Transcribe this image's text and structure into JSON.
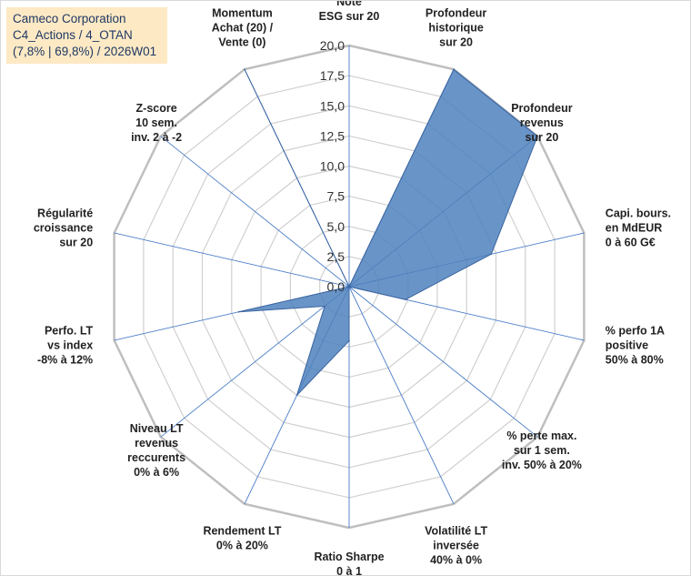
{
  "title": {
    "line1": "Cameco Corporation",
    "line2": "C4_Actions / 4_OTAN",
    "line3": "(7,8% | 69,8%) / 2026W01"
  },
  "chart_data": {
    "type": "radar",
    "title": "Cameco Corporation",
    "rmin": 0,
    "rmax": 20,
    "tick_step": 2.5,
    "ticks": [
      "0,0",
      "2,5",
      "5,0",
      "7,5",
      "10,0",
      "12,5",
      "15,0",
      "17,5",
      "20,0"
    ],
    "axes": [
      {
        "label": [
          "Note",
          "ESG sur 20"
        ]
      },
      {
        "label": [
          "Profondeur",
          "historique",
          "sur 20"
        ]
      },
      {
        "label": [
          "Profondeur",
          "revenus",
          "sur 20"
        ]
      },
      {
        "label": [
          "Capi. bours.",
          "en MdEUR",
          "0 à 60 G€"
        ]
      },
      {
        "label": [
          "% perfo 1A",
          "positive",
          "50% à 80%"
        ]
      },
      {
        "label": [
          "% perte max.",
          "sur 1 sem.",
          "inv. 50% à 20%"
        ]
      },
      {
        "label": [
          "Volatilité LT",
          "inversée",
          "40% à 0%"
        ]
      },
      {
        "label": [
          "Ratio Sharpe",
          "0 à 1"
        ]
      },
      {
        "label": [
          "Rendement LT",
          "0% à 20%"
        ]
      },
      {
        "label": [
          "Niveau LT",
          "revenus",
          "reccurents",
          "0% à 6%"
        ]
      },
      {
        "label": [
          "Perfo. LT",
          "vs index",
          "-8% à 12%"
        ]
      },
      {
        "label": [
          "Régularité",
          "croissance",
          "sur 20"
        ]
      },
      {
        "label": [
          "Z-score",
          "10 sem.",
          "inv. 2 à -2"
        ]
      },
      {
        "label": [
          "Momentum",
          "Achat (20) /",
          "Vente (0)"
        ]
      }
    ],
    "series": [
      {
        "name": "Cameco Corporation",
        "color": "#4f81bd",
        "values": [
          0,
          20,
          20,
          12.1,
          4.8,
          0,
          0,
          4.5,
          10,
          2.6,
          9.4,
          0,
          0,
          20
        ]
      }
    ]
  }
}
